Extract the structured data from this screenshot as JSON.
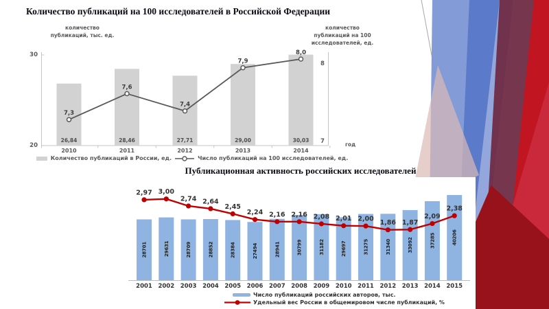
{
  "slide": {
    "background": "#ffffff",
    "accent_colors": {
      "bar_gray": "#d2d2d2",
      "bar_blue": "#8fb4e2",
      "line_dark": "#595959",
      "line_red": "#c00000",
      "deco_blue": "#7e97d4",
      "deco_maroon": "#6f2b44",
      "deco_red": "#c11622",
      "deco_darkred": "#97121a"
    }
  },
  "chart_data": [
    {
      "type": "bar+line",
      "title": "Количество публикаций на 100  исследователей в Российской Федерации",
      "categories": [
        "2010",
        "2011",
        "2012",
        "2013",
        "2014"
      ],
      "bar_series": {
        "name": "Количество публикаций в России, ед.",
        "values": [
          26.84,
          28.46,
          27.71,
          29.0,
          30.03
        ],
        "labels": [
          "26,84",
          "28,46",
          "27,71",
          "29,00",
          "30,03"
        ],
        "color": "#d2d2d2",
        "axis": "left"
      },
      "line_series": {
        "name": "Число публикаций на 100 исследователей, ед.",
        "values": [
          7.3,
          7.6,
          7.4,
          7.9,
          8.0
        ],
        "labels": [
          "7,3",
          "7,6",
          "7,4",
          "7,9",
          "8,0"
        ],
        "color": "#595959",
        "marker": "hollow-circle",
        "axis": "right"
      },
      "left_axis": {
        "label": "количество публикаций, тыс. ед.",
        "min": 20,
        "max": 30,
        "ticks": [
          "30",
          "20"
        ]
      },
      "right_axis": {
        "label": "количество публикаций на 100 исследователей, ед.",
        "min": 7,
        "max": 8,
        "ticks": [
          "8",
          "7"
        ]
      },
      "xlabel": "год",
      "legend_position": "bottom",
      "grid": false
    },
    {
      "type": "bar+line",
      "title": "Публикационная активность российских исследователей",
      "categories": [
        "2001",
        "2002",
        "2003",
        "2004",
        "2005",
        "2006",
        "2007",
        "2008",
        "2009",
        "2010",
        "2011",
        "2012",
        "2013",
        "2014",
        "2015"
      ],
      "bar_series": {
        "name": "Число публикаций российских авторов, тыс.",
        "values": [
          28701,
          29631,
          28709,
          28852,
          28384,
          27494,
          28941,
          30799,
          31182,
          29697,
          31275,
          31340,
          33092,
          37285,
          40206
        ],
        "labels": [
          "28701",
          "29631",
          "28709",
          "28852",
          "28384",
          "27494",
          "28941",
          "30799",
          "31182",
          "29697",
          "31275",
          "31340",
          "33092",
          "37285",
          "40206"
        ],
        "color": "#8fb4e2",
        "axis": "left"
      },
      "line_series": {
        "name": "Удельный вес России в общемировом числе публикаций, %",
        "values": [
          2.97,
          3.0,
          2.74,
          2.64,
          2.45,
          2.24,
          2.16,
          2.16,
          2.08,
          2.01,
          2.0,
          1.86,
          1.87,
          2.09,
          2.38
        ],
        "labels": [
          "2,97",
          "3,00",
          "2,74",
          "2,64",
          "2,45",
          "2,24",
          "2,16",
          "2,16",
          "2,08",
          "2,01",
          "2,00",
          "1,86",
          "1,87",
          "2,09",
          "2,38"
        ],
        "color": "#c00000",
        "marker": "filled-circle",
        "axis": "right"
      },
      "left_axis": {
        "min": 0,
        "max": 40206,
        "ticks": []
      },
      "right_axis": {
        "min": 0,
        "max": 3.5,
        "ticks": []
      },
      "xlabel": "",
      "legend_position": "bottom",
      "grid": false
    }
  ]
}
